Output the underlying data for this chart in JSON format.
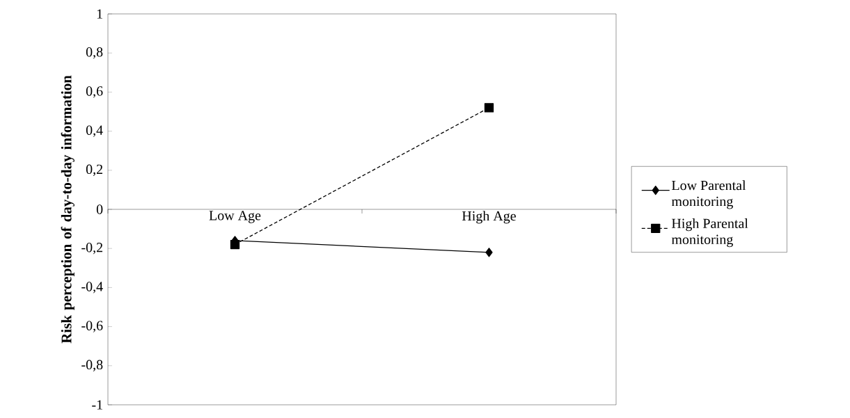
{
  "chart_data": {
    "type": "line",
    "ylabel": "Risk perception of day-to-day information",
    "categories": [
      "Low Age",
      "High Age"
    ],
    "series": [
      {
        "name": "Low Parental monitoring",
        "color": "#000000",
        "marker": "diamond",
        "line_style": "solid",
        "values": [
          -0.16,
          -0.22
        ]
      },
      {
        "name": "High Parental monitoring",
        "color": "#000000",
        "marker": "square",
        "line_style": "dashed",
        "values": [
          -0.18,
          0.52
        ]
      }
    ],
    "ylim": [
      -1,
      1
    ],
    "yticks": [
      {
        "value": -1,
        "label": "-1"
      },
      {
        "value": -0.8,
        "label": "-0,8"
      },
      {
        "value": -0.6,
        "label": "-0,6"
      },
      {
        "value": -0.4,
        "label": "-0,4"
      },
      {
        "value": -0.2,
        "label": "-0,2"
      },
      {
        "value": 0,
        "label": "0"
      },
      {
        "value": 0.2,
        "label": "0,2"
      },
      {
        "value": 0.4,
        "label": "0,4"
      },
      {
        "value": 0.6,
        "label": "0,6"
      },
      {
        "value": 0.8,
        "label": "0,8"
      },
      {
        "value": 1,
        "label": "1"
      }
    ],
    "grid": false,
    "legend": "right"
  }
}
